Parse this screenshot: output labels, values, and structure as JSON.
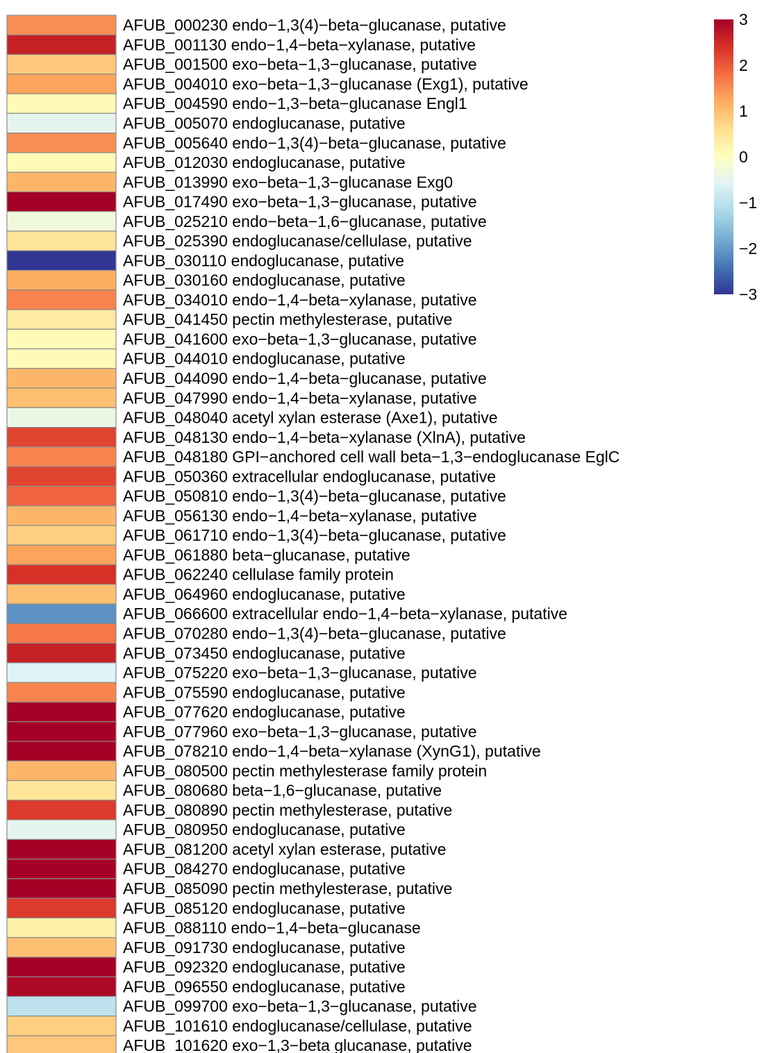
{
  "chart_data": {
    "type": "heatmap",
    "title": "",
    "xlabel": "",
    "ylabel": "",
    "rows": [
      {
        "label": "AFUB_000230 endo−1,3(4)−beta−glucanase, putative",
        "value": 1.5
      },
      {
        "label": "AFUB_001130 endo−1,4−beta−xylanase, putative",
        "value": 2.6
      },
      {
        "label": "AFUB_001500 exo−beta−1,3−glucanase, putative",
        "value": 0.9
      },
      {
        "label": "AFUB_004010 exo−beta−1,3−glucanase (Exg1), putative",
        "value": 1.3
      },
      {
        "label": "AFUB_004590 endo−1,3−beta−glucanase Engl1",
        "value": 0.1
      },
      {
        "label": "AFUB_005070 endoglucanase, putative",
        "value": -0.5
      },
      {
        "label": "AFUB_005640 endo−1,3(4)−beta−glucanase, putative",
        "value": 1.5
      },
      {
        "label": "AFUB_012030 endoglucanase, putative",
        "value": 0.1
      },
      {
        "label": "AFUB_013990 exo−beta−1,3−glucanase Exg0",
        "value": 1.1
      },
      {
        "label": "AFUB_017490 exo−beta−1,3−glucanase, putative",
        "value": 3.0
      },
      {
        "label": "AFUB_025210 endo−beta−1,6−glucanase, putative",
        "value": -0.3
      },
      {
        "label": "AFUB_025390 endoglucanase/cellulase, putative",
        "value": 0.5
      },
      {
        "label": "AFUB_030110 endoglucanase, putative",
        "value": -3.0
      },
      {
        "label": "AFUB_030160 endoglucanase, putative",
        "value": 1.2
      },
      {
        "label": "AFUB_034010 endo−1,4−beta−xylanase, putative",
        "value": 1.6
      },
      {
        "label": "AFUB_041450 pectin methylesterase, putative",
        "value": 0.4
      },
      {
        "label": "AFUB_041600 exo−beta−1,3−glucanase, putative",
        "value": 0.1
      },
      {
        "label": "AFUB_044010 endoglucanase, putative",
        "value": 0.1
      },
      {
        "label": "AFUB_044090 endo−1,4−beta−glucanase, putative",
        "value": 1.1
      },
      {
        "label": "AFUB_047990 endo−1,4−beta−xylanase, putative",
        "value": 1.0
      },
      {
        "label": "AFUB_048040 acetyl xylan esterase (Axe1), putative",
        "value": -0.4
      },
      {
        "label": "AFUB_048130 endo−1,4−beta−xylanase (XlnA), putative",
        "value": 2.2
      },
      {
        "label": "AFUB_048180 GPI−anchored cell wall beta−1,3−endoglucanase EglC",
        "value": 1.6
      },
      {
        "label": "AFUB_050360 extracellular endoglucanase, putative",
        "value": 2.2
      },
      {
        "label": "AFUB_050810 endo−1,3(4)−beta−glucanase, putative",
        "value": 1.9
      },
      {
        "label": "AFUB_056130 endo−1,4−beta−xylanase, putative",
        "value": 1.1
      },
      {
        "label": "AFUB_061710 endo−1,3(4)−beta−glucanase, putative",
        "value": 0.8
      },
      {
        "label": "AFUB_061880 beta−glucanase, putative",
        "value": 1.3
      },
      {
        "label": "AFUB_062240 cellulase family protein",
        "value": 2.4
      },
      {
        "label": "AFUB_064960 endoglucanase, putative",
        "value": 1.0
      },
      {
        "label": "AFUB_066600 extracellular endo−1,4−beta−xylanase, putative",
        "value": -2.1
      },
      {
        "label": "AFUB_070280 endo−1,3(4)−beta−glucanase, putative",
        "value": 1.7
      },
      {
        "label": "AFUB_073450 endoglucanase, putative",
        "value": 2.6
      },
      {
        "label": "AFUB_075220 exo−beta−1,3−glucanase, putative",
        "value": -0.6
      },
      {
        "label": "AFUB_075590 endoglucanase, putative",
        "value": 1.6
      },
      {
        "label": "AFUB_077620 endoglucanase, putative",
        "value": 3.0
      },
      {
        "label": "AFUB_077960 exo−beta−1,3−glucanase, putative",
        "value": 3.0
      },
      {
        "label": "AFUB_078210 endo−1,4−beta−xylanase (XynG1), putative",
        "value": 3.0
      },
      {
        "label": "AFUB_080500 pectin methylesterase family protein",
        "value": 1.1
      },
      {
        "label": "AFUB_080680 beta−1,6−glucanase, putative",
        "value": 0.5
      },
      {
        "label": "AFUB_080890 pectin methylesterase, putative",
        "value": 2.3
      },
      {
        "label": "AFUB_080950 endoglucanase, putative",
        "value": -0.5
      },
      {
        "label": "AFUB_081200 acetyl xylan esterase, putative",
        "value": 3.0
      },
      {
        "label": "AFUB_084270 endoglucanase, putative",
        "value": 3.0
      },
      {
        "label": "AFUB_085090 pectin methylesterase, putative",
        "value": 3.0
      },
      {
        "label": "AFUB_085120 endoglucanase, putative",
        "value": 2.3
      },
      {
        "label": "AFUB_088110 endo−1,4−beta−glucanase",
        "value": 0.3
      },
      {
        "label": "AFUB_091730 endoglucanase, putative",
        "value": 1.0
      },
      {
        "label": "AFUB_092320 endoglucanase, putative",
        "value": 3.0
      },
      {
        "label": "AFUB_096550 endoglucanase, putative",
        "value": 2.9
      },
      {
        "label": "AFUB_099700 exo−beta−1,3−glucanase, putative",
        "value": -1.0
      },
      {
        "label": "AFUB_101610 endoglucanase/cellulase, putative",
        "value": 0.8
      },
      {
        "label": "AFUB_101620 exo−1,3−beta glucanase, putative",
        "value": 0.9
      }
    ],
    "color_scale": {
      "min": -3,
      "max": 3,
      "stops": [
        "#313695",
        "#4575b4",
        "#74add1",
        "#abd9e9",
        "#e0f3f8",
        "#ffffbf",
        "#fee090",
        "#fdae61",
        "#f46d43",
        "#d73027",
        "#a50026"
      ],
      "ticks": [
        "3",
        "2",
        "1",
        "0",
        "−1",
        "−2",
        "−3"
      ],
      "tick_values": [
        3,
        2,
        1,
        0,
        -1,
        -2,
        -3
      ]
    },
    "grid": true,
    "legend": "top-right",
    "cell_border_color": "#8c8c8c"
  }
}
